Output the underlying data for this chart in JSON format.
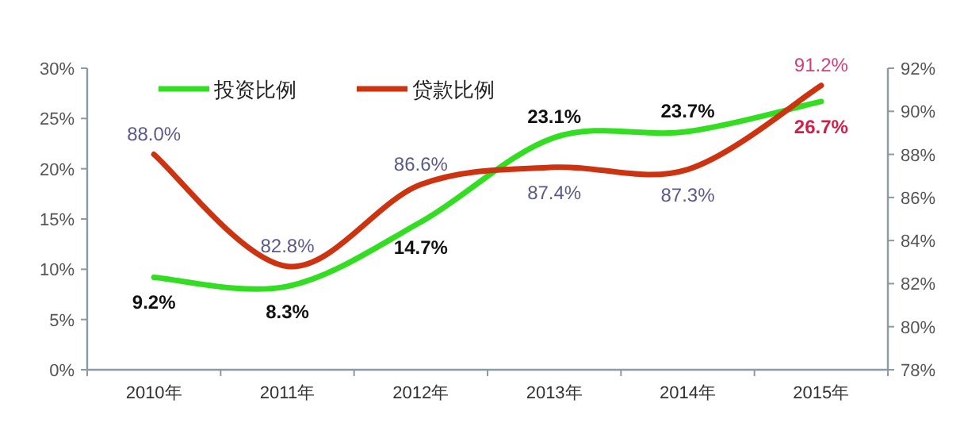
{
  "chart_data": {
    "type": "line",
    "categories": [
      "2010年",
      "2011年",
      "2012年",
      "2013年",
      "2014年",
      "2015年"
    ],
    "series": [
      {
        "name": "投资比例",
        "color": "#33dd22",
        "values": [
          9.2,
          8.3,
          14.7,
          23.1,
          23.7,
          26.7
        ],
        "value_labels": [
          "9.2%",
          "8.3%",
          "14.7%",
          "23.1%",
          "23.7%",
          "26.7%"
        ]
      },
      {
        "name": "贷款比例",
        "color": "#cc3311",
        "axis": "y2",
        "values": [
          88.0,
          82.8,
          86.6,
          87.4,
          87.3,
          91.2
        ],
        "value_labels": [
          "88.0%",
          "82.8%",
          "86.6%",
          "87.4%",
          "87.3%",
          "91.2%"
        ]
      }
    ],
    "ylim": [
      0,
      30
    ],
    "yticks": [
      {
        "value": 0,
        "label": "0%"
      },
      {
        "value": 5,
        "label": "5%"
      },
      {
        "value": 10,
        "label": "10%"
      },
      {
        "value": 15,
        "label": "15%"
      },
      {
        "value": 20,
        "label": "20%"
      },
      {
        "value": 25,
        "label": "25%"
      },
      {
        "value": 30,
        "label": "30%"
      }
    ],
    "y2lim": [
      78,
      92
    ],
    "y2ticks": [
      {
        "value": 78,
        "label": "78%"
      },
      {
        "value": 80,
        "label": "80%"
      },
      {
        "value": 82,
        "label": "82%"
      },
      {
        "value": 84,
        "label": "84%"
      },
      {
        "value": 86,
        "label": "86%"
      },
      {
        "value": 88,
        "label": "88%"
      },
      {
        "value": 90,
        "label": "90%"
      },
      {
        "value": 92,
        "label": "92%"
      }
    ],
    "legend": "top",
    "grid": false,
    "marker": "none",
    "line_style": "solid"
  }
}
